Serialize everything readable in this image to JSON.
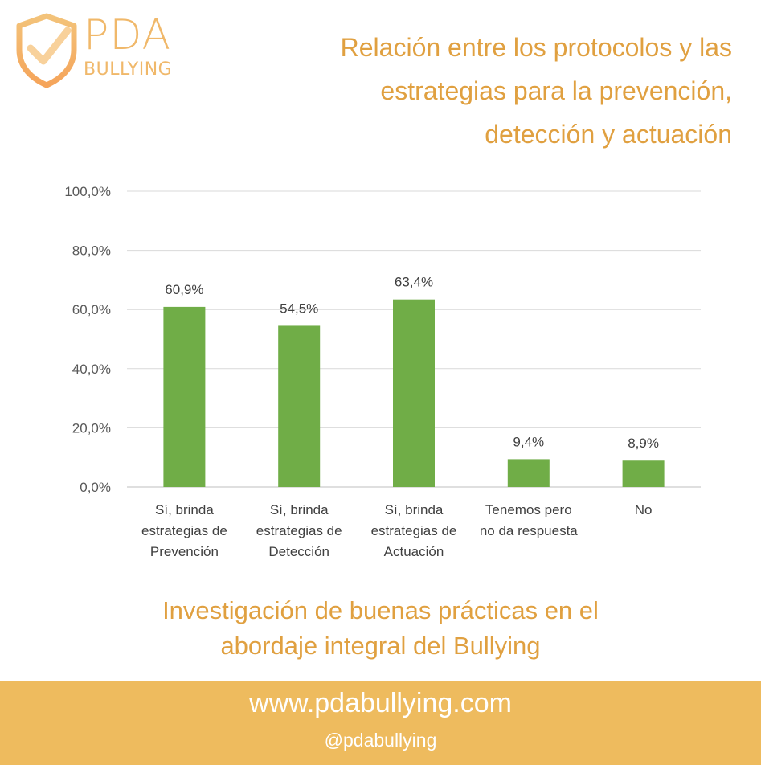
{
  "brand": {
    "logo_word": "PDA",
    "logo_sub": "BULLYING",
    "accent_color": "#e0a040",
    "footer_color": "#eebb5e",
    "bar_color": "#70ad47",
    "logo_icon": "shield-check-icon"
  },
  "title_lines": [
    "Relación entre los protocolos y las",
    "estrategias para la prevención,",
    "detección y actuación"
  ],
  "subtitle_lines": [
    "Investigación de buenas prácticas en el",
    "abordaje integral del Bullying"
  ],
  "footer": {
    "url": "www.pdabullying.com",
    "handle": "@pdabullying"
  },
  "chart_data": {
    "type": "bar",
    "title": "Relación entre los protocolos y las estrategias para la prevención, detección y actuación",
    "xlabel": "",
    "ylabel": "",
    "ylim": [
      0,
      100
    ],
    "yticks": [
      "0,0%",
      "20,0%",
      "40,0%",
      "60,0%",
      "80,0%",
      "100,0%"
    ],
    "grid": true,
    "categories": [
      [
        "Sí, brinda",
        "estrategias de",
        "Prevención"
      ],
      [
        "Sí, brinda",
        "estrategias de",
        "Detección"
      ],
      [
        "Sí, brinda",
        "estrategias de",
        "Actuación"
      ],
      [
        "Tenemos pero",
        "no da respuesta"
      ],
      [
        "No"
      ]
    ],
    "values": [
      60.9,
      54.5,
      63.4,
      9.4,
      8.9
    ],
    "value_labels": [
      "60,9%",
      "54,5%",
      "63,4%",
      "9,4%",
      "8,9%"
    ]
  }
}
